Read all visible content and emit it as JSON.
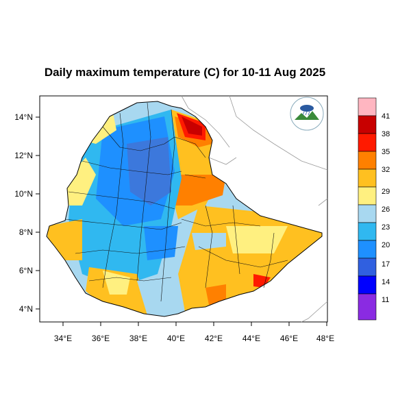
{
  "title": "Daily maximum temperature (C) for 10-11 Aug 2025",
  "axes": {
    "x_ticks": [
      "34°E",
      "36°E",
      "38°E",
      "40°E",
      "42°E",
      "44°E",
      "46°E",
      "48°E"
    ],
    "y_ticks": [
      "14°N",
      "12°N",
      "10°N",
      "8°N",
      "6°N",
      "4°N"
    ]
  },
  "colorbar": {
    "labels": [
      "41",
      "38",
      "35",
      "32",
      "29",
      "26",
      "23",
      "20",
      "17",
      "14",
      "11"
    ],
    "colors": [
      "#ffb6c1",
      "#c80000",
      "#ff1a00",
      "#ff8000",
      "#ffc020",
      "#fff080",
      "#a8d8f0",
      "#30b8f0",
      "#1e90ff",
      "#3060e0",
      "#0000ff",
      "#8a2be2"
    ]
  },
  "logo": {
    "text_top": "የኢትዮጵያ ሚቲዎሮሎጂ ኢንስቲትዩት",
    "text_bottom": "Ethiopian Meteorology Institute"
  },
  "legend_colors": {
    "cold": "#3c78dc",
    "cool": "#30b8f0",
    "mild": "#a8d8f0",
    "warm": "#fff080",
    "hot": "#ffc020",
    "very_hot": "#ff8000",
    "extreme": "#ff1a00",
    "extreme_max": "#c80000"
  }
}
